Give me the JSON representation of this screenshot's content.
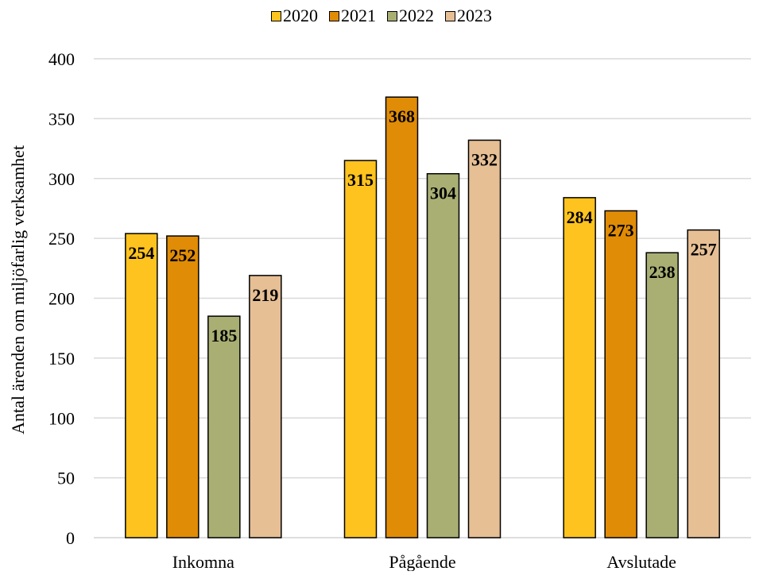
{
  "chart_data": {
    "type": "bar",
    "title": "",
    "xlabel": "",
    "ylabel": "Antal ärenden om miljöfarlig verksamhet",
    "categories": [
      "Inkomna",
      "Pågående",
      "Avslutade"
    ],
    "ylim": [
      0,
      400
    ],
    "yticks": [
      0,
      50,
      100,
      150,
      200,
      250,
      300,
      350,
      400
    ],
    "grid": "horizontal",
    "legend_position": "top-center",
    "series": [
      {
        "name": "2020",
        "color": "#FFC31F",
        "values": [
          254,
          315,
          284
        ]
      },
      {
        "name": "2021",
        "color": "#E08C06",
        "values": [
          252,
          368,
          273
        ]
      },
      {
        "name": "2022",
        "color": "#A9AF73",
        "values": [
          185,
          304,
          238
        ]
      },
      {
        "name": "2023",
        "color": "#E6BF95",
        "values": [
          219,
          332,
          257
        ]
      }
    ]
  }
}
